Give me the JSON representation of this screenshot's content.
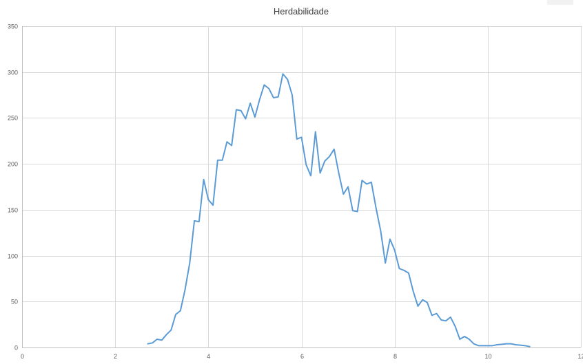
{
  "chart_data": {
    "type": "line",
    "title": "Herdabilidade",
    "xlabel": "",
    "ylabel": "",
    "xlim": [
      0,
      12
    ],
    "ylim": [
      0,
      350
    ],
    "x_ticks": [
      0,
      2,
      4,
      6,
      8,
      10,
      12
    ],
    "x_tick_labels": [
      "0",
      "2",
      "4",
      "6",
      "8",
      "10",
      "12"
    ],
    "y_ticks": [
      0,
      50,
      100,
      150,
      200,
      250,
      300,
      350
    ],
    "y_tick_labels": [
      "0",
      "50",
      "100",
      "150",
      "200",
      "250",
      "300",
      "350"
    ],
    "grid": true,
    "legend": "none",
    "series_color": "#5b9bd5",
    "series": [
      {
        "x": [
          2.7,
          2.8,
          2.9,
          3.0,
          3.1,
          3.2,
          3.3,
          3.4,
          3.5,
          3.6,
          3.7,
          3.8,
          3.9,
          4.0,
          4.1,
          4.2,
          4.3,
          4.4,
          4.5,
          4.6,
          4.7,
          4.8,
          4.9,
          5.0,
          5.1,
          5.2,
          5.3,
          5.4,
          5.5,
          5.6,
          5.7,
          5.8,
          5.9,
          6.0,
          6.1,
          6.2,
          6.3,
          6.4,
          6.5,
          6.6,
          6.7,
          6.8,
          6.9,
          7.0,
          7.1,
          7.2,
          7.3,
          7.4,
          7.5,
          7.6,
          7.7,
          7.8,
          7.9,
          8.0,
          8.1,
          8.2,
          8.3,
          8.4,
          8.5,
          8.6,
          8.7,
          8.8,
          8.9,
          9.0,
          9.1,
          9.2,
          9.3,
          9.4,
          9.5,
          9.6,
          9.7,
          9.8,
          9.9,
          10.0,
          10.1,
          10.2,
          10.3,
          10.4,
          10.5,
          10.6,
          10.7,
          10.8,
          10.9
        ],
        "values": [
          4,
          5,
          9,
          8,
          14,
          19,
          36,
          40,
          63,
          92,
          138,
          137,
          183,
          161,
          155,
          204,
          204,
          224,
          220,
          259,
          258,
          249,
          266,
          251,
          270,
          286,
          282,
          272,
          273,
          298,
          292,
          275,
          227,
          229,
          199,
          187,
          235,
          190,
          203,
          208,
          216,
          190,
          167,
          175,
          149,
          148,
          182,
          178,
          180,
          152,
          127,
          92,
          118,
          106,
          86,
          84,
          81,
          61,
          45,
          52,
          49,
          35,
          37,
          30,
          29,
          33,
          23,
          9,
          12,
          9,
          4,
          2,
          2,
          2,
          2,
          3,
          3.5,
          4,
          4,
          3,
          2.5,
          2,
          1
        ]
      }
    ]
  }
}
